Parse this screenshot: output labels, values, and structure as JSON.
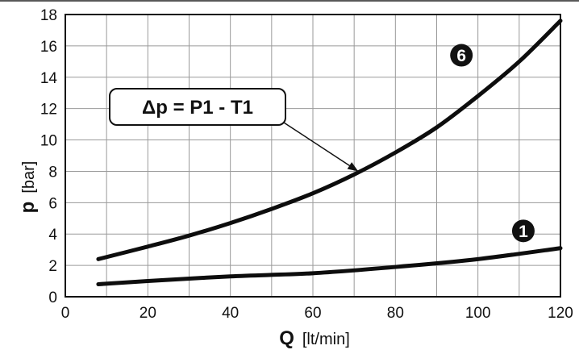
{
  "chart_data": {
    "type": "line",
    "x_axis": {
      "label": "Q",
      "unit": "[lt/min]",
      "min": 0,
      "max": 120,
      "ticks": [
        "0",
        "20",
        "40",
        "60",
        "80",
        "100",
        "120"
      ]
    },
    "y_axis": {
      "label": "p",
      "unit": "[bar]",
      "min": 0,
      "max": 18,
      "ticks": [
        "0",
        "2",
        "4",
        "6",
        "8",
        "10",
        "12",
        "14",
        "16",
        "18"
      ]
    },
    "grid": "on",
    "series": [
      {
        "name": "6",
        "x": [
          8,
          20,
          30,
          40,
          50,
          60,
          70,
          80,
          90,
          100,
          110,
          120
        ],
        "y": [
          2.4,
          3.2,
          3.9,
          4.7,
          5.6,
          6.6,
          7.8,
          9.2,
          10.8,
          12.8,
          15.0,
          17.6
        ]
      },
      {
        "name": "1",
        "x": [
          8,
          20,
          40,
          60,
          80,
          100,
          120
        ],
        "y": [
          0.8,
          1.0,
          1.3,
          1.5,
          1.9,
          2.4,
          3.1
        ]
      }
    ],
    "annotation": {
      "text": "Δp = P1 - T1",
      "points_to": {
        "x": 71,
        "y": 8.0
      }
    }
  }
}
